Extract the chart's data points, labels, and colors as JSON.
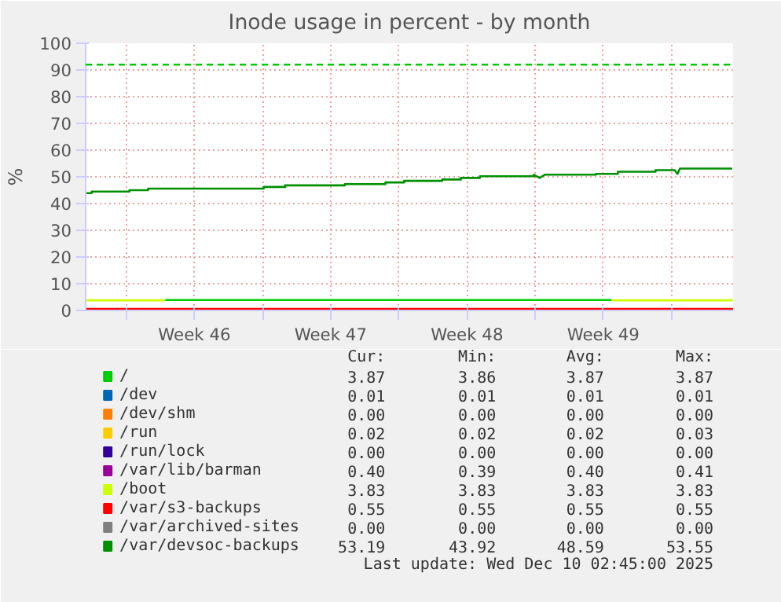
{
  "chart_data": {
    "type": "line",
    "title": "Inode usage in percent - by month",
    "ylabel": "%",
    "xlim": [
      "2025-11-07T22:00",
      "2025-12-11T04:00"
    ],
    "xticks": [
      {
        "value": "2025-11-10",
        "label": null
      },
      {
        "value": "2025-11-13T12:00",
        "label": "Week 46"
      },
      {
        "value": "2025-11-17",
        "label": null
      },
      {
        "value": "2025-11-20T12:00",
        "label": "Week 47"
      },
      {
        "value": "2025-11-24",
        "label": null
      },
      {
        "value": "2025-11-27T12:00",
        "label": "Week 48"
      },
      {
        "value": "2025-12-01",
        "label": null
      },
      {
        "value": "2025-12-04T12:00",
        "label": "Week 49"
      },
      {
        "value": "2025-12-08",
        "label": null
      }
    ],
    "ylim": [
      0,
      100
    ],
    "yticks": [
      0,
      10,
      20,
      30,
      40,
      50,
      60,
      70,
      80,
      90,
      100
    ],
    "grid": true,
    "legend": "bottom",
    "marker": "none",
    "line_style": "solid",
    "ref_lines": [
      {
        "axis": "y",
        "value": 92,
        "label": null,
        "color": "#00cc00",
        "line_style": "dashed"
      }
    ],
    "series": [
      {
        "name": "/",
        "color": "#00cc00",
        "x": [
          "2025-11-12T00:00",
          "2025-12-04T22:00"
        ],
        "values": [
          3.9,
          3.9
        ]
      },
      {
        "name": "/dev",
        "color": "#0066b3"
      },
      {
        "name": "/dev/shm",
        "color": "#ff8000"
      },
      {
        "name": "/run",
        "color": "#ffcc00"
      },
      {
        "name": "/run/lock",
        "color": "#330099"
      },
      {
        "name": "/var/lib/barman",
        "color": "#990099"
      },
      {
        "name": "/boot",
        "color": "#ccff00",
        "x": [
          "2025-11-07T22:00",
          "2025-11-12T00:00",
          "2025-11-23T22:00",
          "2025-12-04T22:00",
          "2025-12-11T04:00"
        ],
        "values": [
          3.8,
          3.8,
          null,
          3.8,
          3.8
        ]
      },
      {
        "name": "/var/s3-backups",
        "color": "#ff0000",
        "x": [
          "2025-11-07T22:00",
          "2025-12-11T04:00"
        ],
        "values": [
          0.6,
          0.6
        ]
      },
      {
        "name": "/var/archived-sites",
        "color": "#808080"
      },
      {
        "name": "/var/devsoc-backups",
        "color": "#008f00",
        "x": [
          "2025-11-07T22:00",
          "2025-11-08T05:30",
          "2025-11-08T05:30",
          "2025-11-10T04:00",
          "2025-11-10T04:00",
          "2025-11-11T03:00",
          "2025-11-11T03:00",
          "2025-11-17T01:30",
          "2025-11-17T01:30",
          "2025-11-18T04:00",
          "2025-11-18T04:00",
          "2025-11-21T05:30",
          "2025-11-21T05:30",
          "2025-11-23T07:30",
          "2025-11-23T07:30",
          "2025-11-24T06:30",
          "2025-11-24T06:30",
          "2025-11-26T05:30",
          "2025-11-26T05:30",
          "2025-11-27T04:30",
          "2025-11-27T04:30",
          "2025-11-28T04:00",
          "2025-11-28T04:00",
          "2025-11-30T22:30",
          "2025-11-30T22:30",
          "2025-12-01T05:30",
          "2025-12-01T12:00",
          "2025-12-04T03:00",
          "2025-12-04T03:00",
          "2025-12-05T06:00",
          "2025-12-05T06:00",
          "2025-12-07T04:30",
          "2025-12-07T04:30",
          "2025-12-08T04:00",
          "2025-12-08T07:30",
          "2025-12-08T10:30",
          "2025-12-11T03:00"
        ],
        "values": [
          43.9,
          43.9,
          44.5,
          44.5,
          45.0,
          45.0,
          45.6,
          45.6,
          46.2,
          46.2,
          46.8,
          46.8,
          47.3,
          47.3,
          47.9,
          47.9,
          48.5,
          48.5,
          49.0,
          49.0,
          49.6,
          49.6,
          50.2,
          50.2,
          50.8,
          49.6,
          50.8,
          50.8,
          51.1,
          51.1,
          51.9,
          51.9,
          52.5,
          52.5,
          51.1,
          53.1,
          53.1
        ]
      }
    ],
    "annotations": [
      "Cur:",
      "Min:",
      "Avg:",
      "Max:",
      "3.87",
      "3.86",
      "3.87",
      "3.87",
      "0.01",
      "0.01",
      "0.01",
      "0.01",
      "0.00",
      "0.00",
      "0.00",
      "0.00",
      "0.02",
      "0.02",
      "0.02",
      "0.03",
      "0.00",
      "0.00",
      "0.00",
      "0.00",
      "0.40",
      "0.39",
      "0.40",
      "0.41",
      "3.83",
      "3.83",
      "3.83",
      "3.83",
      "0.55",
      "0.55",
      "0.55",
      "0.55",
      "0.00",
      "0.00",
      "0.00",
      "0.00",
      "53.19",
      "43.92",
      "48.59",
      "53.55",
      "Last update: Wed Dec 10 02:45:00 2025"
    ]
  }
}
